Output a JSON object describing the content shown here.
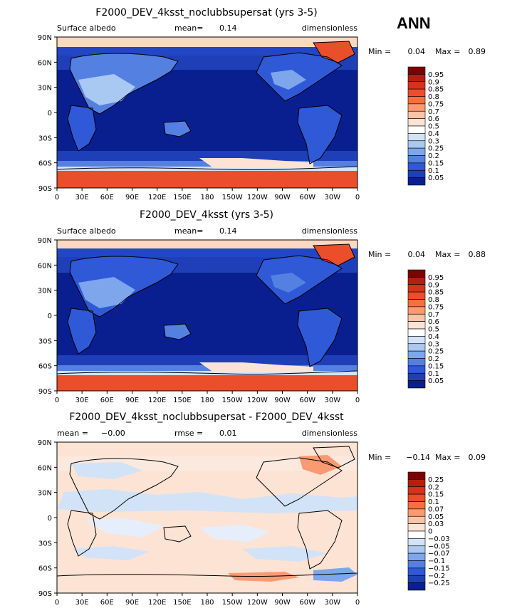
{
  "header": {
    "season": "ANN"
  },
  "chart_data": [
    {
      "type": "heatmap",
      "title": "F2000_DEV_4ksst_noclubbsupersat (yrs 3-5)",
      "left_label": "Surface albedo",
      "mid_label": "mean=",
      "mid_value": "0.14",
      "right_label": "dimensionless",
      "stats": {
        "min_label": "Min =",
        "min": "0.04",
        "max_label": "Max =",
        "max": "0.89"
      },
      "ylabels": [
        "90N",
        "60N",
        "30N",
        "0",
        "30S",
        "60S",
        "90S"
      ],
      "xlabels": [
        "0",
        "30E",
        "60E",
        "90E",
        "120E",
        "150E",
        "180",
        "150W",
        "120W",
        "90W",
        "60W",
        "30W",
        "0"
      ],
      "colorbar": {
        "levels": [
          "0.95",
          "0.9",
          "0.85",
          "0.8",
          "0.75",
          "0.7",
          "0.6",
          "0.5",
          "0.4",
          "0.3",
          "0.25",
          "0.2",
          "0.15",
          "0.1",
          "0.05"
        ],
        "colors": [
          "#7f0000",
          "#b3200e",
          "#d7331a",
          "#ea4e2a",
          "#f5703f",
          "#fa9a72",
          "#fdc3a6",
          "#fde3d4",
          "#ffffff",
          "#d2e3f8",
          "#a9c8f2",
          "#7ea6ec",
          "#5480e2",
          "#2f59d6",
          "#1f3fb8",
          "#0a1f8f"
        ]
      }
    },
    {
      "type": "heatmap",
      "title": "F2000_DEV_4ksst (yrs 3-5)",
      "left_label": "Surface albedo",
      "mid_label": "mean=",
      "mid_value": "0.14",
      "right_label": "dimensionless",
      "stats": {
        "min_label": "Min =",
        "min": "0.04",
        "max_label": "Max =",
        "max": "0.88"
      },
      "ylabels": [
        "90N",
        "60N",
        "30N",
        "0",
        "30S",
        "60S",
        "90S"
      ],
      "xlabels": [
        "0",
        "30E",
        "60E",
        "90E",
        "120E",
        "150E",
        "180",
        "150W",
        "120W",
        "90W",
        "60W",
        "30W",
        "0"
      ],
      "colorbar": {
        "levels": [
          "0.95",
          "0.9",
          "0.85",
          "0.8",
          "0.75",
          "0.7",
          "0.6",
          "0.5",
          "0.4",
          "0.3",
          "0.25",
          "0.2",
          "0.15",
          "0.1",
          "0.05"
        ],
        "colors": [
          "#7f0000",
          "#b3200e",
          "#d7331a",
          "#ea4e2a",
          "#f5703f",
          "#fa9a72",
          "#fdc3a6",
          "#fde3d4",
          "#ffffff",
          "#d2e3f8",
          "#a9c8f2",
          "#7ea6ec",
          "#5480e2",
          "#2f59d6",
          "#1f3fb8",
          "#0a1f8f"
        ]
      }
    },
    {
      "type": "heatmap",
      "title": "F2000_DEV_4ksst_noclubbsupersat - F2000_DEV_4ksst",
      "left_label": "mean =",
      "left_value": "−0.00",
      "mid_label": "rmse =",
      "mid_value": "0.01",
      "right_label": "dimensionless",
      "stats": {
        "min_label": "Min =",
        "min": "−0.14",
        "max_label": "Max =",
        "max": "0.09"
      },
      "ylabels": [
        "90N",
        "60N",
        "30N",
        "0",
        "30S",
        "60S",
        "90S"
      ],
      "xlabels": [
        "0",
        "30E",
        "60E",
        "90E",
        "120E",
        "150E",
        "180",
        "150W",
        "120W",
        "90W",
        "60W",
        "30W",
        "0"
      ],
      "colorbar": {
        "levels": [
          "0.25",
          "0.2",
          "0.15",
          "0.1",
          "0.07",
          "0.05",
          "0.03",
          "0",
          "−0.03",
          "−0.05",
          "−0.07",
          "−0.1",
          "−0.15",
          "−0.2",
          "−0.25"
        ],
        "colors": [
          "#7f0000",
          "#b3200e",
          "#d7331a",
          "#ea4e2a",
          "#f5703f",
          "#fa9a72",
          "#fdc3a6",
          "#fde3d4",
          "#ffffff",
          "#d2e3f8",
          "#a9c8f2",
          "#7ea6ec",
          "#5480e2",
          "#2f59d6",
          "#1f3fb8",
          "#0a1f8f"
        ]
      }
    }
  ]
}
